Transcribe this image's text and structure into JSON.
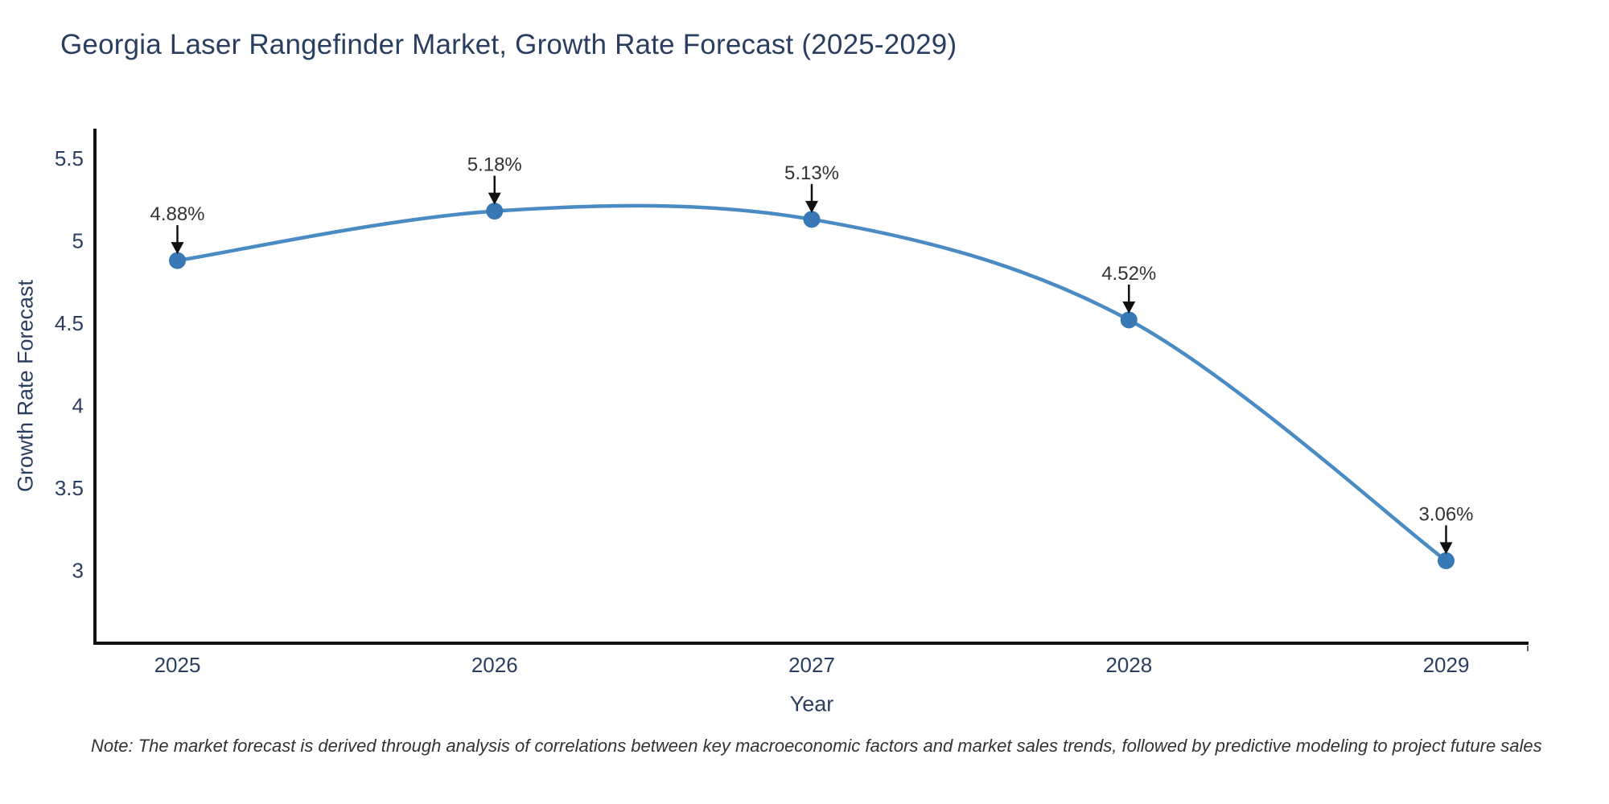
{
  "chart_data": {
    "type": "line",
    "title": "Georgia Laser Rangefinder Market, Growth Rate Forecast (2025-2029)",
    "xlabel": "Year",
    "ylabel": "Growth Rate Forecast",
    "line_shape": "spline",
    "grid": false,
    "legend": "none",
    "x": [
      2025,
      2026,
      2027,
      2028,
      2029
    ],
    "values": [
      4.88,
      5.18,
      5.13,
      4.52,
      3.06
    ],
    "point_labels": [
      "4.88%",
      "5.18%",
      "5.13%",
      "4.52%",
      "3.06%"
    ],
    "x_tick_labels": [
      "2025",
      "2026",
      "2027",
      "2028",
      "2029"
    ],
    "y_ticks": [
      3,
      3.5,
      4,
      4.5,
      5,
      5.5
    ],
    "y_tick_labels": [
      "3",
      "3.5",
      "4",
      "4.5",
      "5",
      "5.5"
    ],
    "xlim": [
      2024.74,
      2029.26
    ],
    "ylim": [
      2.56,
      5.68
    ],
    "colors": {
      "line": "#4a8bc4",
      "marker": "#3878b4",
      "axis_line": "#111111",
      "axis_text": "#2a3f5f",
      "title_text": "#2a3f5f",
      "annotation_text": "#333333",
      "annotation_arrow": "#111111",
      "background": "#ffffff"
    }
  },
  "note": {
    "text": "Note: The market forecast is derived through analysis of correlations between key macroeconomic factors and market sales trends, followed by predictive modeling to project future sales"
  }
}
